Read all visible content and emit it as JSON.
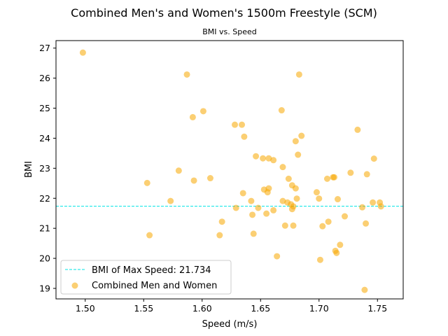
{
  "chart_data": {
    "type": "scatter",
    "title": "Combined Men's and Women's 1500m Freestyle (SCM)",
    "subtitle": "BMI vs. Speed",
    "xlabel": "Speed (m/s)",
    "ylabel": "BMI",
    "xlim": [
      1.475,
      1.772
    ],
    "ylim": [
      18.65,
      27.25
    ],
    "xticks": [
      "1.50",
      "1.55",
      "1.60",
      "1.65",
      "1.70",
      "1.75"
    ],
    "yticks": [
      "19",
      "20",
      "21",
      "22",
      "23",
      "24",
      "25",
      "26",
      "27"
    ],
    "grid": false,
    "legend_position": "lower-left",
    "colors": {
      "points": "#f7a800",
      "ref_line": "#00e5e5"
    },
    "reference_line": {
      "label": "BMI of Max Speed: 21.734",
      "y": 21.734
    },
    "series": [
      {
        "name": "Combined Men and Women",
        "x": [
          1.498,
          1.587,
          1.592,
          1.601,
          1.628,
          1.634,
          1.636,
          1.646,
          1.652,
          1.657,
          1.661,
          1.668,
          1.669,
          1.68,
          1.683,
          1.682,
          1.685,
          1.733,
          1.747,
          1.58,
          1.593,
          1.607,
          1.553,
          1.573,
          1.555,
          1.615,
          1.617,
          1.629,
          1.635,
          1.642,
          1.643,
          1.644,
          1.648,
          1.653,
          1.655,
          1.656,
          1.657,
          1.661,
          1.664,
          1.669,
          1.671,
          1.673,
          1.674,
          1.676,
          1.677,
          1.677,
          1.678,
          1.678,
          1.68,
          1.681,
          1.698,
          1.7,
          1.701,
          1.703,
          1.707,
          1.708,
          1.712,
          1.713,
          1.714,
          1.715,
          1.716,
          1.718,
          1.722,
          1.727,
          1.737,
          1.739,
          1.74,
          1.741,
          1.746,
          1.752,
          1.753
        ],
        "y": [
          26.85,
          26.12,
          24.7,
          24.9,
          24.45,
          24.45,
          24.05,
          23.4,
          23.33,
          23.33,
          23.27,
          24.93,
          23.04,
          23.9,
          26.12,
          23.45,
          24.08,
          24.28,
          23.32,
          22.92,
          22.59,
          22.67,
          22.51,
          21.91,
          20.77,
          20.77,
          21.22,
          21.68,
          22.17,
          21.91,
          21.45,
          20.82,
          21.68,
          22.29,
          21.49,
          22.2,
          22.33,
          21.6,
          20.07,
          21.91,
          21.09,
          21.86,
          22.65,
          21.8,
          21.64,
          22.43,
          21.09,
          21.73,
          22.33,
          21.99,
          22.2,
          21.99,
          19.95,
          21.07,
          22.65,
          21.22,
          22.7,
          22.7,
          20.25,
          20.18,
          21.97,
          20.45,
          21.4,
          22.85,
          21.7,
          18.95,
          21.16,
          22.8,
          21.86,
          21.86,
          21.73
        ]
      }
    ]
  }
}
